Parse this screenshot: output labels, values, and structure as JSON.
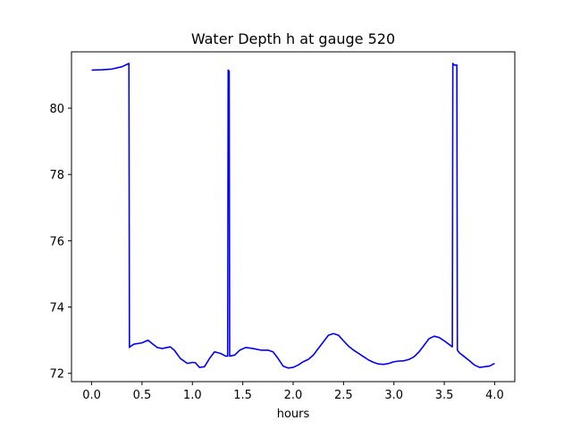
{
  "chart_data": {
    "type": "line",
    "title": "Water Depth h at gauge 520",
    "xlabel": "hours",
    "ylabel": "",
    "xlim": [
      -0.2,
      4.2
    ],
    "ylim": [
      71.75,
      81.7
    ],
    "xticks": [
      0.0,
      0.5,
      1.0,
      1.5,
      2.0,
      2.5,
      3.0,
      3.5,
      4.0
    ],
    "xtick_labels": [
      "0.0",
      "0.5",
      "1.0",
      "1.5",
      "2.0",
      "2.5",
      "3.0",
      "3.5",
      "4.0"
    ],
    "yticks": [
      72,
      74,
      76,
      78,
      80
    ],
    "ytick_labels": [
      "72",
      "74",
      "76",
      "78",
      "80"
    ],
    "grid": false,
    "series": [
      {
        "color": "#0000ff",
        "x": [
          0.0,
          0.1,
          0.2,
          0.3,
          0.37,
          0.375,
          0.38,
          0.42,
          0.5,
          0.56,
          0.6,
          0.65,
          0.7,
          0.78,
          0.82,
          0.88,
          0.95,
          1.0,
          1.03,
          1.07,
          1.12,
          1.17,
          1.22,
          1.28,
          1.33,
          1.35,
          1.355,
          1.365,
          1.37,
          1.42,
          1.47,
          1.53,
          1.6,
          1.68,
          1.75,
          1.8,
          1.85,
          1.9,
          1.95,
          2.0,
          2.05,
          2.1,
          2.15,
          2.2,
          2.25,
          2.3,
          2.35,
          2.4,
          2.45,
          2.5,
          2.55,
          2.6,
          2.65,
          2.7,
          2.75,
          2.8,
          2.85,
          2.9,
          2.95,
          3.0,
          3.05,
          3.1,
          3.15,
          3.2,
          3.25,
          3.3,
          3.35,
          3.4,
          3.45,
          3.5,
          3.58,
          3.585,
          3.6,
          3.625,
          3.63,
          3.65,
          3.7,
          3.75,
          3.8,
          3.85,
          3.9,
          3.95,
          4.0
        ],
        "y": [
          81.15,
          81.16,
          81.18,
          81.25,
          81.35,
          72.78,
          72.8,
          72.88,
          72.92,
          73.0,
          72.9,
          72.78,
          72.75,
          72.8,
          72.7,
          72.45,
          72.3,
          72.33,
          72.32,
          72.18,
          72.2,
          72.45,
          72.65,
          72.6,
          72.52,
          72.52,
          81.15,
          81.12,
          72.52,
          72.55,
          72.7,
          72.78,
          72.75,
          72.7,
          72.7,
          72.65,
          72.45,
          72.22,
          72.16,
          72.18,
          72.25,
          72.35,
          72.42,
          72.55,
          72.75,
          72.95,
          73.15,
          73.2,
          73.15,
          72.98,
          72.82,
          72.7,
          72.6,
          72.5,
          72.4,
          72.33,
          72.28,
          72.27,
          72.3,
          72.35,
          72.37,
          72.38,
          72.42,
          72.5,
          72.65,
          72.85,
          73.05,
          73.12,
          73.08,
          72.98,
          72.8,
          81.35,
          81.3,
          81.3,
          72.7,
          72.62,
          72.5,
          72.38,
          72.25,
          72.18,
          72.2,
          72.22,
          72.3
        ]
      }
    ]
  }
}
